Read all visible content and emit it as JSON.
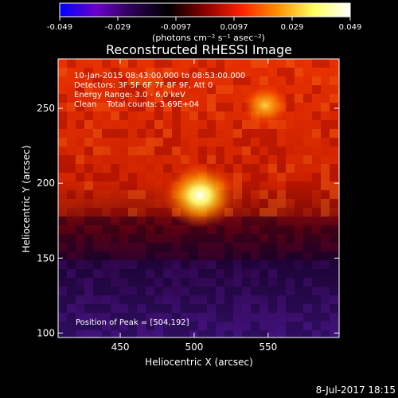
{
  "chart_data": {
    "type": "heatmap",
    "title": "Reconstructed RHESSI Image",
    "xlabel": "Heliocentric X (arcsec)",
    "ylabel": "Heliocentric Y (arcsec)",
    "xlim": [
      408,
      598
    ],
    "ylim": [
      97,
      283
    ],
    "x_ticks": [
      450,
      500,
      550
    ],
    "y_ticks": [
      100,
      150,
      200,
      250
    ],
    "colorbar": {
      "ticks": [
        "-0.049",
        "-0.029",
        "-0.0097",
        "0.0097",
        "0.029",
        "0.049"
      ],
      "range": [
        -0.049,
        0.049
      ],
      "units_label": "(photons cm⁻² s⁻¹ asec⁻²)",
      "colors": [
        "#0000ff",
        "#6a00c8",
        "#2a0050",
        "#000000",
        "#8a0000",
        "#ff2000",
        "#ff9000",
        "#ffff60",
        "#ffffff"
      ]
    },
    "annotations": [
      "10-Jan-2015 08:43:00.000 to 08:53:00.000",
      "Detectors: 3F 5F 6F 7F 8F 9F, Att 0",
      "Energy Range: 3.0 - 6.0 keV",
      "Clean    Total counts: 3.69E+04"
    ],
    "peak_label": "Position of Peak = [504,192]",
    "sources": [
      {
        "x": 504,
        "y": 192,
        "peak": 0.049
      },
      {
        "x": 548,
        "y": 252,
        "peak": 0.036
      }
    ],
    "timestamp": "8-Jul-2017 18:15"
  }
}
